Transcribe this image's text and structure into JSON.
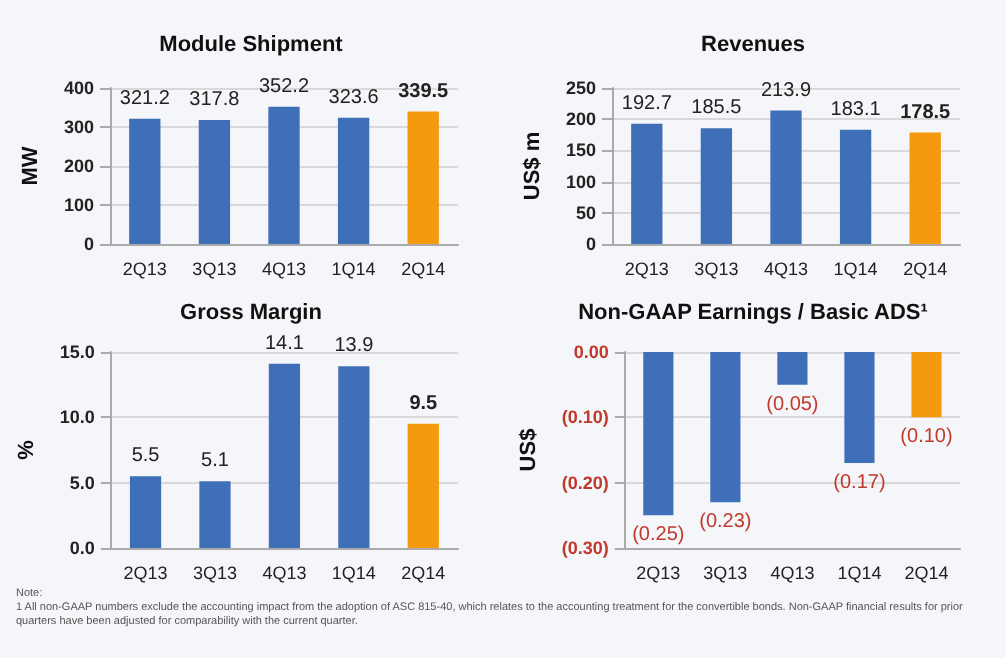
{
  "chart_data": [
    {
      "type": "bar",
      "title": "Module Shipment",
      "ylabel": "MW",
      "categories": [
        "2Q13",
        "3Q13",
        "4Q13",
        "1Q14",
        "2Q14"
      ],
      "values": [
        321.2,
        317.8,
        352.2,
        323.6,
        339.5
      ],
      "colors": [
        "#3f6fb8",
        "#3f6fb8",
        "#3f6fb8",
        "#3f6fb8",
        "#f59a0e"
      ],
      "ylim": [
        0,
        400
      ],
      "yticks": [
        0,
        100,
        200,
        300,
        400
      ],
      "grid": "y",
      "data_labels": true
    },
    {
      "type": "bar",
      "title": "Revenues",
      "ylabel": "US$ m",
      "categories": [
        "2Q13",
        "3Q13",
        "4Q13",
        "1Q14",
        "2Q14"
      ],
      "values": [
        192.7,
        185.5,
        213.9,
        183.1,
        178.5
      ],
      "colors": [
        "#3f6fb8",
        "#3f6fb8",
        "#3f6fb8",
        "#3f6fb8",
        "#f59a0e"
      ],
      "ylim": [
        0,
        250
      ],
      "yticks": [
        0,
        50,
        100,
        150,
        200,
        250
      ],
      "grid": "y",
      "data_labels": true
    },
    {
      "type": "bar",
      "title": "Gross Margin",
      "ylabel": "%",
      "categories": [
        "2Q13",
        "3Q13",
        "4Q13",
        "1Q14",
        "2Q14"
      ],
      "values": [
        5.5,
        5.1,
        14.1,
        13.9,
        9.5
      ],
      "value_labels": [
        "5.5",
        "5.1",
        "14.1",
        "13.9",
        "9.5"
      ],
      "colors": [
        "#3f6fb8",
        "#3f6fb8",
        "#3f6fb8",
        "#3f6fb8",
        "#f59a0e"
      ],
      "ylim": [
        0,
        15
      ],
      "yticks": [
        {
          "value": 0,
          "label": "0.0"
        },
        {
          "value": 5,
          "label": "5.0"
        },
        {
          "value": 10,
          "label": "10.0"
        },
        {
          "value": 15,
          "label": "15.0"
        }
      ],
      "grid": "y"
    },
    {
      "type": "bar",
      "title": "Non-GAAP Earnings / Basic ADS¹",
      "ylabel": "US$",
      "categories": [
        "2Q13",
        "3Q13",
        "4Q13",
        "1Q14",
        "2Q14"
      ],
      "values": [
        -0.25,
        -0.23,
        -0.05,
        -0.17,
        -0.1
      ],
      "value_labels": [
        "(0.25)",
        "(0.23)",
        "(0.05)",
        "(0.17)",
        "(0.10)"
      ],
      "colors": [
        "#3f6fb8",
        "#3f6fb8",
        "#3f6fb8",
        "#3f6fb8",
        "#f59a0e"
      ],
      "ylim": [
        -0.3,
        0
      ],
      "yticks": [
        {
          "value": -0.3,
          "label": "(0.30)"
        },
        {
          "value": -0.2,
          "label": "(0.20)"
        },
        {
          "value": -0.1,
          "label": "(0.10)"
        },
        {
          "value": 0,
          "label": "0.00"
        }
      ],
      "grid": "y",
      "annotations": [
        "Note:",
        "1   All non-GAAP numbers exclude the accounting impact from the adoption of ASC 815-40, which relates to the accounting treatment for the convertible bonds.  Non-GAAP financial results for prior quarters have been adjusted for comparability with the current quarter."
      ]
    }
  ]
}
